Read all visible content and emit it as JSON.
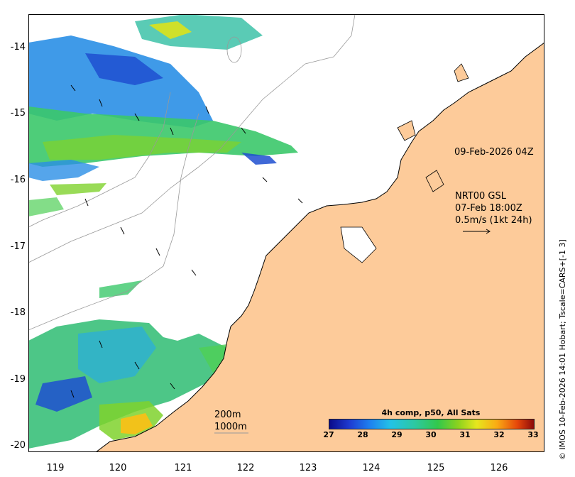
{
  "map": {
    "lat_ticks": [
      "-14",
      "-15",
      "-16",
      "-17",
      "-18",
      "-19",
      "-20"
    ],
    "lon_ticks": [
      "119",
      "120",
      "121",
      "122",
      "123",
      "124",
      "125",
      "126"
    ],
    "lon_range": [
      118.6,
      126.7
    ],
    "lat_range": [
      -20.1,
      -13.5
    ],
    "land_color": "#fdcb9a",
    "ocean_color": "#ffffff",
    "bathymetry_labels": [
      "200m",
      "1000m"
    ]
  },
  "annotations": {
    "image_time": "09-Feb-2026 04Z",
    "product": "NRT00 GSL",
    "vector_time": "07-Feb 18:00Z",
    "scale_label": "0.5m/s (1kt 24h)"
  },
  "colorbar": {
    "title": "4h comp, p50, All Sats",
    "ticks": [
      "27",
      "28",
      "29",
      "30",
      "31",
      "32",
      "33"
    ],
    "range": [
      27,
      33
    ],
    "colors": [
      "#0a0a8a",
      "#1e82f0",
      "#2dc8a0",
      "#32c84b",
      "#e6e61e",
      "#faaa14",
      "#8c0a0a"
    ]
  },
  "credit": "© IMOS 10-Feb-2026 14:01 Hobart; Tscale=CARS+[-1 3]"
}
